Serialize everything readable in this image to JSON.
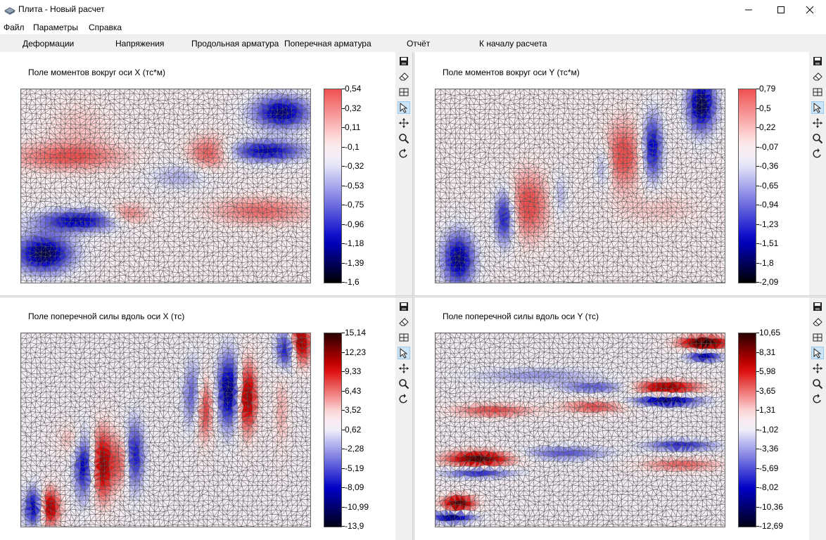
{
  "window": {
    "title": "Плита - Новый расчет"
  },
  "menu": [
    "Файл",
    "Параметры",
    "Справка"
  ],
  "toolbar": [
    "Деформации",
    "Напряжения",
    "Продольная арматура",
    "Поперечная арматура",
    "Отчёт",
    "К началу расчета"
  ],
  "tools": [
    "save-icon",
    "eraser-icon",
    "grid-icon",
    "cursor-icon",
    "move-icon",
    "zoom-icon",
    "rotate-icon"
  ],
  "panels": [
    {
      "title": "Поле моментов вокруг оси X (тс*м)",
      "colormap": "blue-white-red",
      "ticks": [
        "0,54",
        "0,32",
        "0,11",
        "-0,1",
        "-0,32",
        "-0,53",
        "-0,75",
        "-0,96",
        "-1,18",
        "-1,39",
        "-1,6"
      ]
    },
    {
      "title": "Поле моментов вокруг оси Y (тс*м)",
      "colormap": "blue-white-red",
      "ticks": [
        "0,79",
        "0,5",
        "0,22",
        "-0,07",
        "-0,36",
        "-0,65",
        "-0,94",
        "-1,23",
        "-1,51",
        "-1,8",
        "-2,09"
      ]
    },
    {
      "title": "Поле поперечной силы вдоль оси X (тс)",
      "colormap": "black-blue-white-red-black",
      "ticks": [
        "15,14",
        "12,23",
        "9,33",
        "6,43",
        "3,52",
        "0,62",
        "-2,28",
        "-5,19",
        "-8,09",
        "-10,99",
        "-13,9"
      ]
    },
    {
      "title": "Поле поперечной силы вдоль оси Y (тс)",
      "colormap": "black-blue-white-red-black",
      "ticks": [
        "10,65",
        "8,31",
        "5,98",
        "3,65",
        "1,31",
        "-1,02",
        "-3,36",
        "-5,69",
        "-8,02",
        "-10,36",
        "-12,69"
      ]
    }
  ]
}
